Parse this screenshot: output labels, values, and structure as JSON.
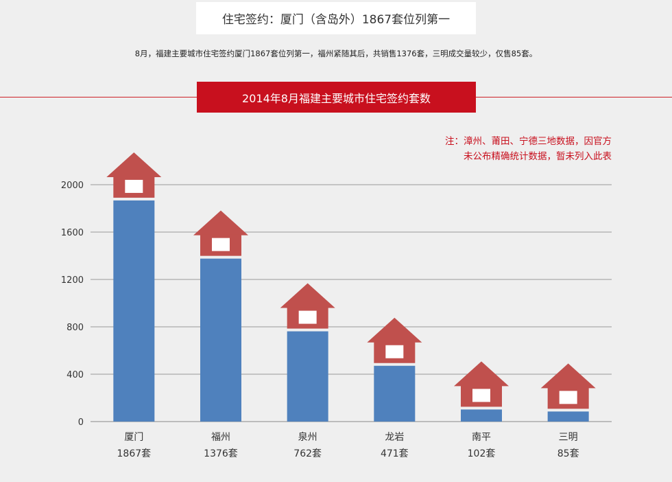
{
  "header": {
    "headline": "住宅签约：厦门（含岛外）1867套位列第一",
    "summary": "8月，福建主要城市住宅签约厦门1867套位列第一，福州紧随其后，共销售1376套，三明成交量较少，仅售85套。"
  },
  "note": {
    "line1": "注：漳州、莆田、宁德三地数据，因官方",
    "line2": "未公布精确统计数据，暂未列入此表"
  },
  "colors": {
    "bar": "#4f81bd",
    "house": "#c0504d",
    "accent": "#c8101e",
    "grid": "#9a9a9a"
  },
  "chart_data": {
    "type": "bar",
    "title": "2014年8月福建主要城市住宅签约套数",
    "categories": [
      "厦门",
      "福州",
      "泉州",
      "龙岩",
      "南平",
      "三明"
    ],
    "value_labels": [
      "1867套",
      "1376套",
      "762套",
      "471套",
      "102套",
      "85套"
    ],
    "values": [
      1867,
      1376,
      762,
      471,
      102,
      85
    ],
    "yticks": [
      "0",
      "400",
      "800",
      "1200",
      "1600",
      "2000"
    ],
    "ylim": [
      0,
      2000
    ],
    "grid": true,
    "legend": "none"
  }
}
